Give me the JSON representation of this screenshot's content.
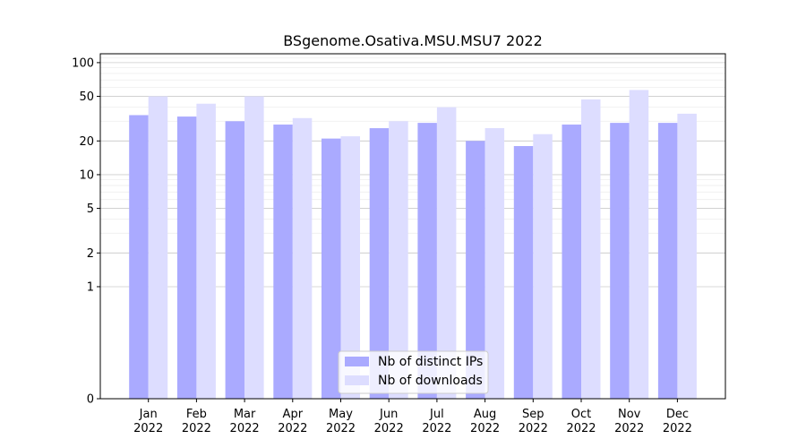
{
  "chart_data": {
    "type": "bar",
    "title": "BSgenome.Osativa.MSU.MSU7 2022",
    "xlabel": "",
    "ylabel": "",
    "yscale": "symlog",
    "ylim": [
      0,
      120
    ],
    "yticks": [
      0,
      1,
      2,
      5,
      10,
      20,
      50,
      100
    ],
    "ytick_labels": [
      "0",
      "1",
      "2",
      "5",
      "10",
      "20",
      "50",
      "100"
    ],
    "grid": true,
    "legend_position": "bottom-center",
    "categories": [
      "Jan\n2022",
      "Feb\n2022",
      "Mar\n2022",
      "Apr\n2022",
      "May\n2022",
      "Jun\n2022",
      "Jul\n2022",
      "Aug\n2022",
      "Sep\n2022",
      "Oct\n2022",
      "Nov\n2022",
      "Dec\n2022"
    ],
    "series": [
      {
        "name": "Nb of distinct IPs",
        "color": "#aaaaff",
        "values": [
          34,
          33,
          30,
          28,
          21,
          26,
          29,
          20,
          18,
          28,
          29,
          29
        ]
      },
      {
        "name": "Nb of downloads",
        "color": "#ddddff",
        "values": [
          50,
          43,
          50,
          32,
          22,
          30,
          40,
          26,
          23,
          47,
          57,
          35
        ]
      }
    ]
  }
}
